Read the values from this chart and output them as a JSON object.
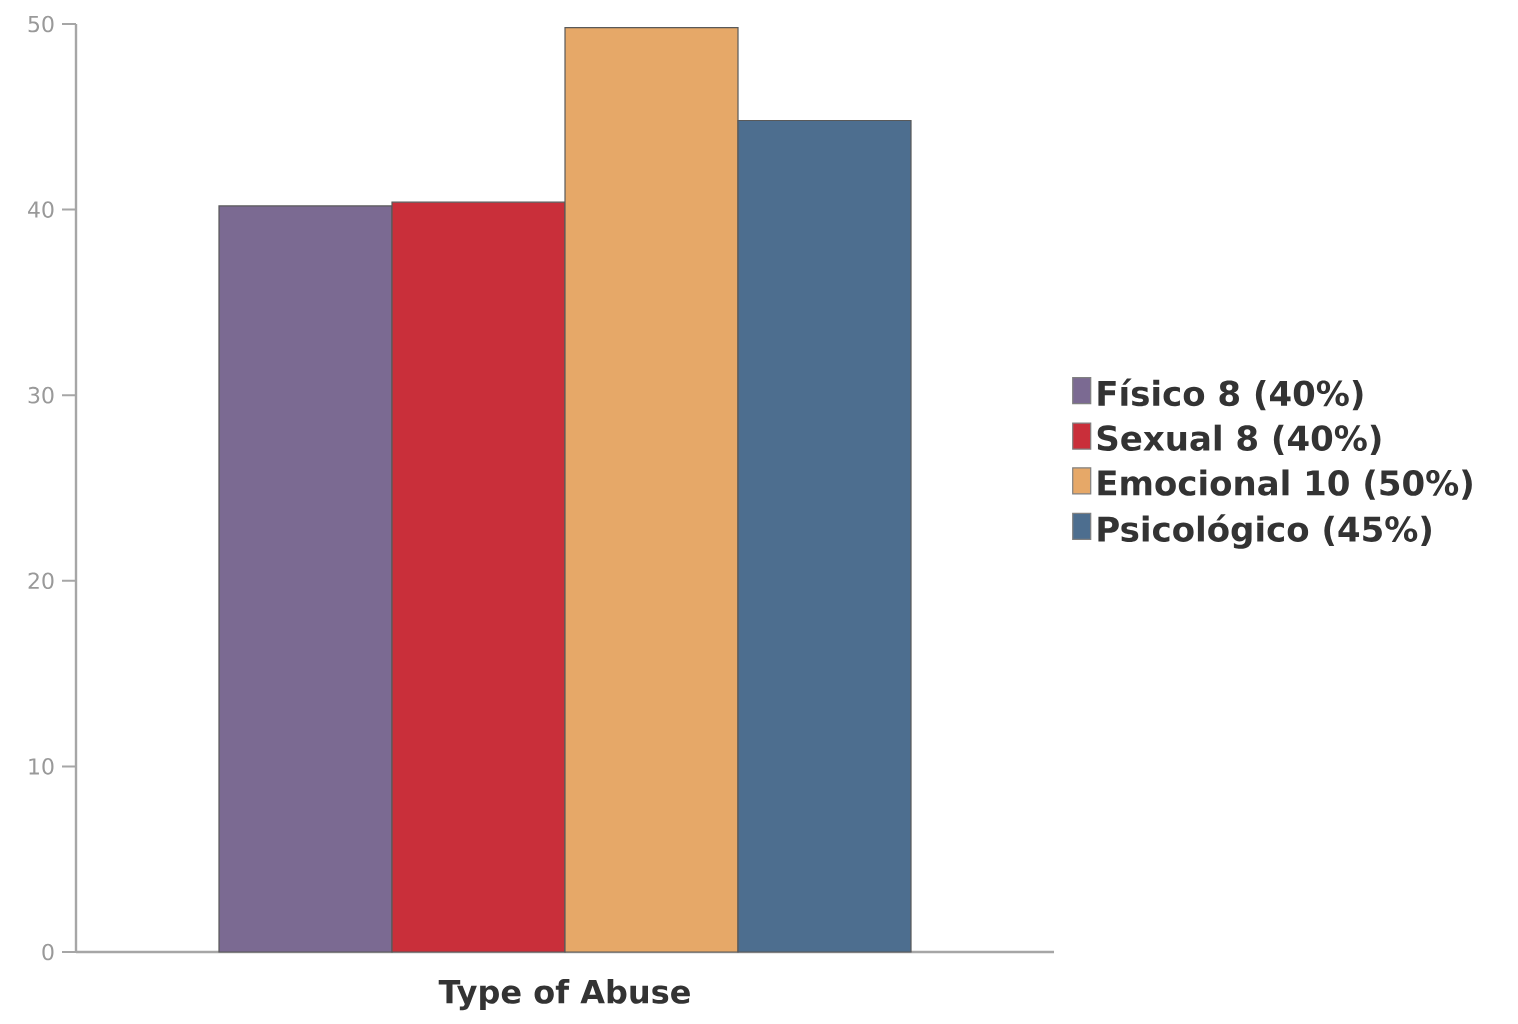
{
  "chart_data": {
    "type": "bar",
    "xlabel": "Type of Abuse",
    "categories": [
      null
    ],
    "series": [
      {
        "name": "Físico 8 (40%)",
        "color": "#7b6a92",
        "values": [
          40.2
        ]
      },
      {
        "name": "Sexual 8 (40%)",
        "color": "#c92f3a",
        "values": [
          40.4
        ]
      },
      {
        "name": "Emocional 10 (50%)",
        "color": "#e6a868",
        "values": [
          49.8
        ]
      },
      {
        "name": "Psicológico (45%)",
        "color": "#4d6e8f",
        "values": [
          44.8
        ]
      }
    ],
    "ylim": [
      0,
      50
    ],
    "yticks": [
      0,
      10,
      20,
      30,
      40,
      50
    ],
    "legend": "right"
  }
}
